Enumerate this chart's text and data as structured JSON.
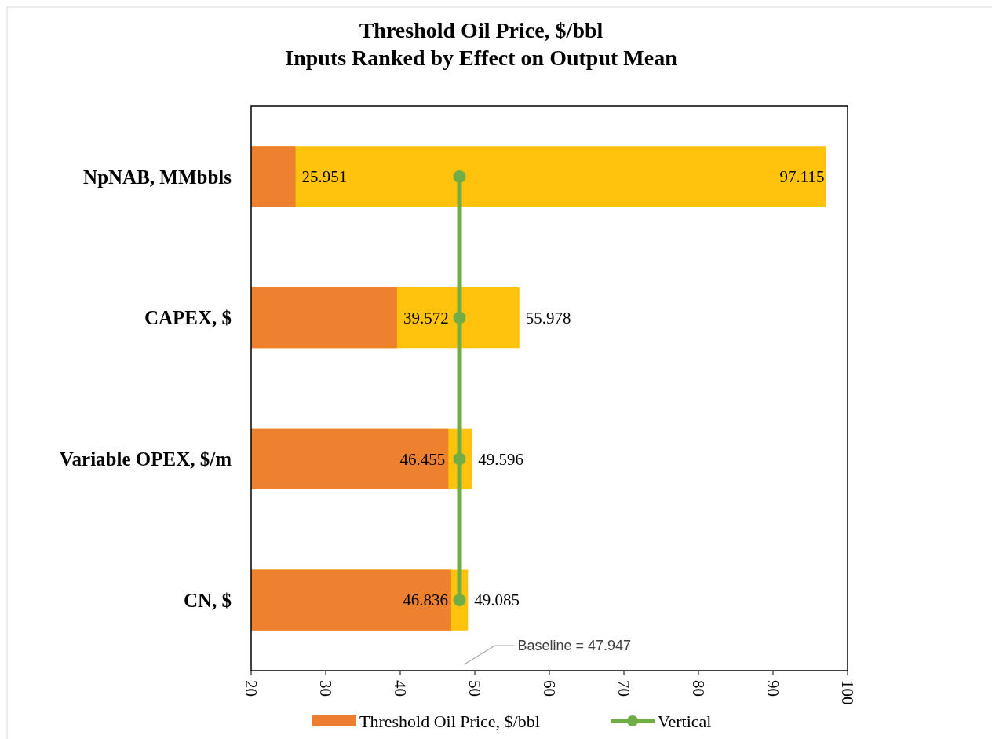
{
  "chart_data": {
    "type": "bar",
    "orientation": "horizontal",
    "title": "Threshold Oil Price, $/bbl",
    "subtitle": "Inputs Ranked by Effect on Output Mean",
    "categories": [
      "NpNAB, MMbbls",
      "CAPEX, $",
      "Variable OPEX, $/m",
      "CN, $"
    ],
    "series": [
      {
        "color": "#ffc000",
        "values": [
          97.115,
          55.978,
          49.596,
          49.085
        ],
        "value_labels": [
          "97.115",
          "55.978",
          "49.596",
          "49.085"
        ]
      },
      {
        "name": "Threshold Oil Price, $/bbl",
        "color": "#ed7d31",
        "values": [
          25.951,
          39.572,
          46.455,
          46.836
        ],
        "value_labels": [
          "25.951",
          "39.572",
          "46.455",
          "46.836"
        ]
      },
      {
        "type": "line",
        "name": "Vertical",
        "color": "#70ad47",
        "values": [
          47.947,
          47.947,
          47.947,
          47.947
        ],
        "marker": "circle"
      }
    ],
    "xlim": [
      20,
      100
    ],
    "xticks": [
      20,
      30,
      40,
      50,
      60,
      70,
      80,
      90,
      100
    ],
    "grid": false,
    "legend": "bottom",
    "annotations": [
      "Baseline = 47.947"
    ]
  }
}
